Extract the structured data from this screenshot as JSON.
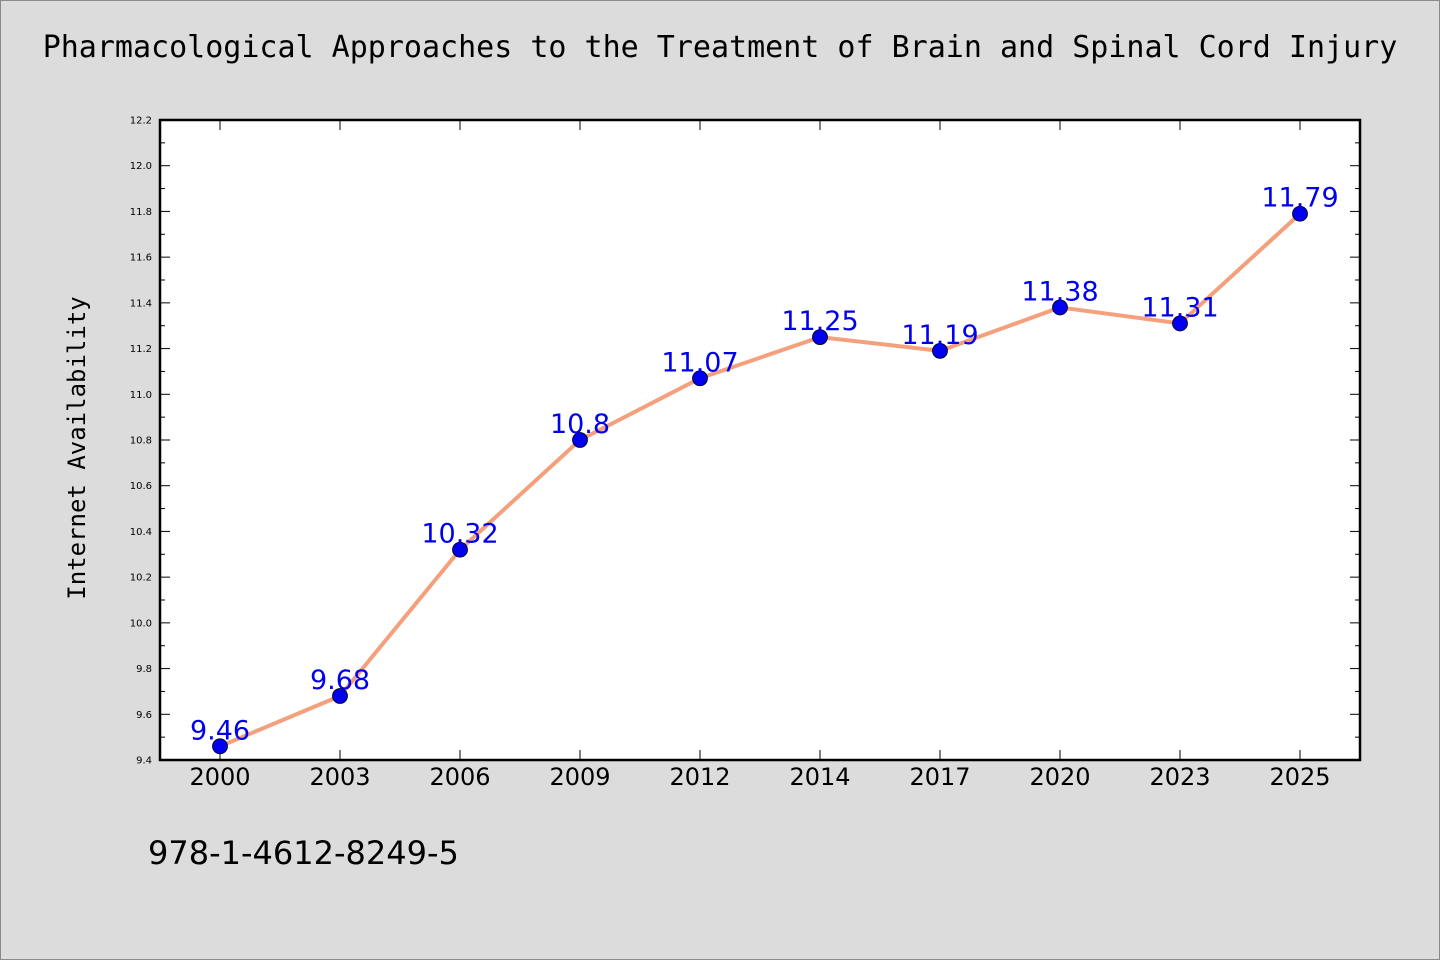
{
  "page": {
    "isbn": "978-1-4612-8249-5"
  },
  "chart_data": {
    "type": "line",
    "title": "Pharmacological Approaches to the Treatment of Brain and Spinal Cord Injury",
    "xlabel": "",
    "ylabel": "Internet Availability",
    "categories": [
      "2000",
      "2003",
      "2006",
      "2009",
      "2012",
      "2014",
      "2017",
      "2020",
      "2023",
      "2025"
    ],
    "values": [
      9.46,
      9.68,
      10.32,
      10.8,
      11.07,
      11.25,
      11.19,
      11.38,
      11.31,
      11.79
    ],
    "value_labels": [
      "9.46",
      "9.68",
      "10.32",
      "10.8",
      "11.07",
      "11.25",
      "11.19",
      "11.38",
      "11.31",
      "11.79"
    ],
    "ylim": [
      9.4,
      12.2
    ],
    "yticks": [
      "9.4",
      "9.6",
      "9.8",
      "10.0",
      "10.2",
      "10.4",
      "10.6",
      "10.8",
      "11.0",
      "11.2",
      "11.4",
      "11.6",
      "11.8",
      "12.0",
      "12.2"
    ],
    "grid": false,
    "legend": "none",
    "colors": {
      "line": "#f4a07c",
      "marker": "#0000ee",
      "label": "#0000ee",
      "plot_bg": "#ffffff",
      "page_bg": "#dcdcdc"
    }
  }
}
